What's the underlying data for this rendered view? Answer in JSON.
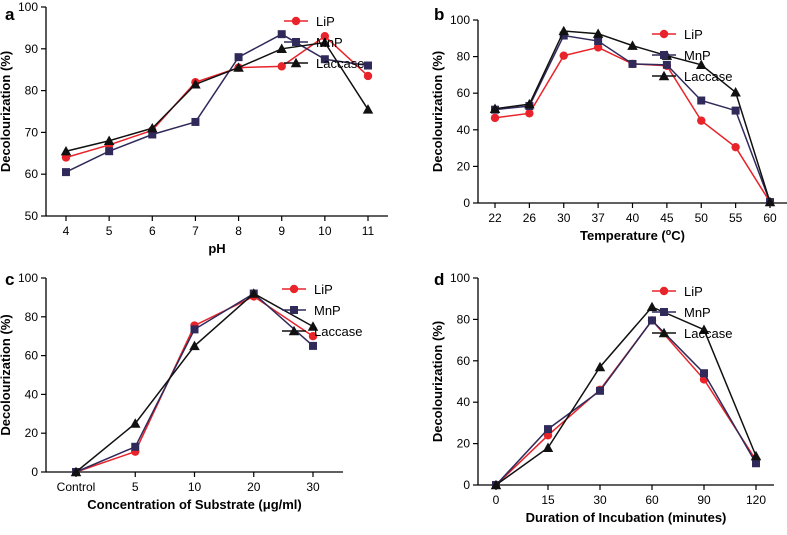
{
  "colors": {
    "LiP": "#e8232a",
    "MnP": "#2f2a5a",
    "Laccase": "#111111"
  },
  "markers": {
    "LiP": "circle",
    "MnP": "square",
    "Laccase": "triangle"
  },
  "chart_data": [
    {
      "id": "a",
      "letter": "a",
      "type": "line",
      "categories": [
        "4",
        "5",
        "6",
        "7",
        "8",
        "9",
        "10",
        "11"
      ],
      "xlabel": "pH",
      "ylabel": "Decolourization (%)",
      "ylim": [
        50,
        100
      ],
      "yticks": [
        50,
        60,
        70,
        80,
        90,
        100
      ],
      "legend": [
        "LiP",
        "MnP",
        "Laccase"
      ],
      "series": [
        {
          "name": "LiP",
          "values": [
            64.0,
            67.0,
            70.5,
            82.0,
            85.5,
            85.8,
            93.0,
            83.5
          ]
        },
        {
          "name": "MnP",
          "values": [
            60.5,
            65.5,
            69.5,
            72.5,
            88.0,
            93.5,
            87.5,
            86.0
          ]
        },
        {
          "name": "Laccase",
          "values": [
            65.5,
            68.0,
            71.0,
            81.5,
            85.5,
            90.0,
            91.5,
            75.5
          ]
        }
      ]
    },
    {
      "id": "b",
      "letter": "b",
      "type": "line",
      "categories": [
        "22",
        "26",
        "30",
        "37",
        "40",
        "45",
        "50",
        "55",
        "60"
      ],
      "xlabel": "Temperature (°C)",
      "xlabel_parts": [
        "Temperature (",
        "o",
        "C)"
      ],
      "ylabel": "Decolourization (%)",
      "ylim": [
        0,
        100
      ],
      "yticks": [
        0,
        20,
        40,
        60,
        80,
        100
      ],
      "legend": [
        "LiP",
        "MnP",
        "Laccase"
      ],
      "series": [
        {
          "name": "LiP",
          "values": [
            46.5,
            49.0,
            80.5,
            85.0,
            76.0,
            75.0,
            45.0,
            30.5,
            0.5
          ]
        },
        {
          "name": "MnP",
          "values": [
            51.0,
            53.0,
            91.5,
            88.5,
            76.0,
            75.5,
            56.0,
            50.5,
            0.5
          ]
        },
        {
          "name": "Laccase",
          "values": [
            51.5,
            54.0,
            94.0,
            92.5,
            86.0,
            80.5,
            75.5,
            60.5,
            0.5
          ]
        }
      ]
    },
    {
      "id": "c",
      "letter": "c",
      "type": "line",
      "categories": [
        "Control",
        "5",
        "10",
        "20",
        "30"
      ],
      "xlabel": "Concentration of Substrate (μg/ml)",
      "ylabel": "Decolourization (%)",
      "ylim": [
        0,
        100
      ],
      "yticks": [
        0,
        20,
        40,
        60,
        80,
        100
      ],
      "legend": [
        "LiP",
        "MnP",
        "Laccase"
      ],
      "series": [
        {
          "name": "LiP",
          "values": [
            0,
            10.5,
            75.5,
            90.5,
            70.0
          ]
        },
        {
          "name": "MnP",
          "values": [
            0,
            13.0,
            73.5,
            92.0,
            65.0
          ]
        },
        {
          "name": "Laccase",
          "values": [
            0,
            25.0,
            65.0,
            92.0,
            75.0
          ]
        }
      ]
    },
    {
      "id": "d",
      "letter": "d",
      "type": "line",
      "categories": [
        "0",
        "15",
        "30",
        "60",
        "90",
        "120"
      ],
      "xlabel": "Duration of Incubation (minutes)",
      "ylabel": "Decolourization (%)",
      "ylim": [
        0,
        100
      ],
      "yticks": [
        0,
        20,
        40,
        60,
        80,
        100
      ],
      "legend": [
        "LiP",
        "MnP",
        "Laccase"
      ],
      "series": [
        {
          "name": "LiP",
          "values": [
            0,
            24.0,
            46.0,
            79.5,
            51.0,
            12.0
          ]
        },
        {
          "name": "MnP",
          "values": [
            0,
            27.0,
            45.5,
            79.5,
            54.0,
            10.5
          ]
        },
        {
          "name": "Laccase",
          "values": [
            0,
            18.0,
            57.0,
            86.0,
            75.0,
            14.0
          ]
        }
      ]
    }
  ]
}
